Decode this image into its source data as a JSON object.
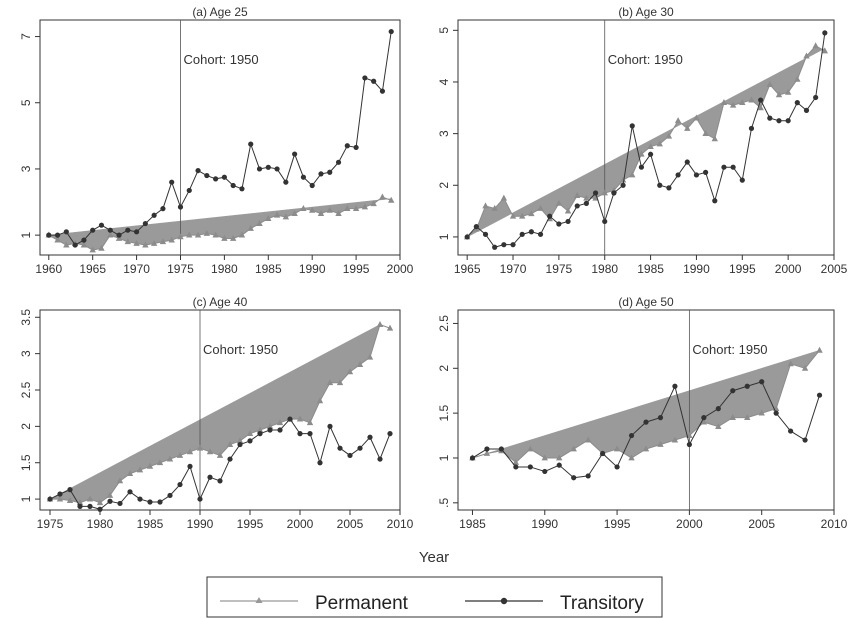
{
  "figure": {
    "xlabel": "Year"
  },
  "legend": {
    "items": [
      {
        "label": "Permanent",
        "color": "#999999",
        "marker": "triangle"
      },
      {
        "label": "Transitory",
        "color": "#333333",
        "marker": "circle"
      }
    ]
  },
  "chart_data": [
    {
      "type": "line",
      "title": "(a) Age 25",
      "xlim": [
        1959,
        2000
      ],
      "ylim": [
        0.4,
        7.5
      ],
      "xticks": [
        1960,
        1965,
        1970,
        1975,
        1980,
        1985,
        1990,
        1995,
        2000
      ],
      "yticks": [
        1,
        3,
        5,
        7
      ],
      "ytick_labels": [
        "1",
        "3",
        "5",
        "7"
      ],
      "vline": 1975,
      "annotation": "Cohort: 1950",
      "trend": {
        "x": [
          1960,
          1999
        ],
        "y": [
          1.0,
          2.1
        ]
      },
      "series": [
        {
          "name": "Permanent",
          "x": [
            1960,
            1961,
            1962,
            1963,
            1964,
            1965,
            1966,
            1967,
            1968,
            1969,
            1970,
            1971,
            1972,
            1973,
            1974,
            1975,
            1976,
            1977,
            1978,
            1979,
            1980,
            1981,
            1982,
            1983,
            1984,
            1985,
            1986,
            1987,
            1988,
            1989,
            1990,
            1991,
            1992,
            1993,
            1994,
            1995,
            1996,
            1997,
            1998,
            1999
          ],
          "y": [
            1.0,
            0.85,
            0.7,
            0.75,
            0.7,
            0.55,
            0.6,
            1.0,
            0.9,
            0.8,
            0.75,
            0.7,
            0.75,
            0.8,
            0.85,
            0.95,
            1.0,
            1.0,
            1.05,
            1.0,
            0.9,
            0.9,
            1.0,
            1.2,
            1.35,
            1.5,
            1.6,
            1.55,
            1.65,
            1.8,
            1.75,
            1.65,
            1.75,
            1.65,
            1.8,
            1.8,
            1.85,
            1.95,
            2.15,
            2.05
          ]
        },
        {
          "name": "Transitory",
          "x": [
            1960,
            1961,
            1962,
            1963,
            1964,
            1965,
            1966,
            1967,
            1968,
            1969,
            1970,
            1971,
            1972,
            1973,
            1974,
            1975,
            1976,
            1977,
            1978,
            1979,
            1980,
            1981,
            1982,
            1983,
            1984,
            1985,
            1986,
            1987,
            1988,
            1989,
            1990,
            1991,
            1992,
            1993,
            1994,
            1995,
            1996,
            1997,
            1998,
            1999
          ],
          "y": [
            1.0,
            1.0,
            1.1,
            0.7,
            0.85,
            1.15,
            1.3,
            1.15,
            1.0,
            1.15,
            1.1,
            1.35,
            1.6,
            1.8,
            2.6,
            1.85,
            2.35,
            2.95,
            2.8,
            2.7,
            2.75,
            2.5,
            2.4,
            3.75,
            3.0,
            3.05,
            3.0,
            2.6,
            3.45,
            2.75,
            2.5,
            2.85,
            2.9,
            3.2,
            3.7,
            3.65,
            5.75,
            5.65,
            5.35,
            7.15
          ]
        }
      ]
    },
    {
      "type": "line",
      "title": "(b) Age 30",
      "xlim": [
        1964,
        2005
      ],
      "ylim": [
        0.65,
        5.2
      ],
      "xticks": [
        1965,
        1970,
        1975,
        1980,
        1985,
        1990,
        1995,
        2000,
        2005
      ],
      "yticks": [
        1,
        2,
        3,
        4,
        5
      ],
      "ytick_labels": [
        "1",
        "2",
        "3",
        "4",
        "5"
      ],
      "vline": 1980,
      "annotation": "Cohort: 1950",
      "trend": {
        "x": [
          1965,
          2004
        ],
        "y": [
          1.0,
          4.65
        ]
      },
      "series": [
        {
          "name": "Permanent",
          "x": [
            1965,
            1966,
            1967,
            1968,
            1969,
            1970,
            1971,
            1972,
            1973,
            1974,
            1975,
            1976,
            1977,
            1978,
            1979,
            1980,
            1981,
            1982,
            1983,
            1984,
            1985,
            1986,
            1987,
            1988,
            1989,
            1990,
            1991,
            1992,
            1993,
            1994,
            1995,
            1996,
            1997,
            1998,
            1999,
            2000,
            2001,
            2002,
            2003,
            2004
          ],
          "y": [
            1.0,
            1.15,
            1.6,
            1.55,
            1.75,
            1.4,
            1.4,
            1.45,
            1.55,
            1.35,
            1.65,
            1.5,
            1.8,
            1.75,
            1.75,
            1.85,
            1.9,
            2.1,
            2.2,
            2.6,
            2.75,
            2.8,
            2.95,
            3.25,
            3.1,
            3.3,
            3.0,
            2.9,
            3.6,
            3.55,
            3.6,
            3.65,
            3.5,
            3.95,
            3.75,
            3.8,
            4.05,
            4.5,
            4.7,
            4.6
          ]
        },
        {
          "name": "Transitory",
          "x": [
            1965,
            1966,
            1967,
            1968,
            1969,
            1970,
            1971,
            1972,
            1973,
            1974,
            1975,
            1976,
            1977,
            1978,
            1979,
            1980,
            1981,
            1982,
            1983,
            1984,
            1985,
            1986,
            1987,
            1988,
            1989,
            1990,
            1991,
            1992,
            1993,
            1994,
            1995,
            1996,
            1997,
            1998,
            1999,
            2000,
            2001,
            2002,
            2003,
            2004
          ],
          "y": [
            1.0,
            1.2,
            1.05,
            0.8,
            0.85,
            0.85,
            1.05,
            1.1,
            1.05,
            1.4,
            1.25,
            1.3,
            1.6,
            1.65,
            1.85,
            1.3,
            1.85,
            2.0,
            3.15,
            2.35,
            2.6,
            2.0,
            1.95,
            2.2,
            2.45,
            2.2,
            2.25,
            1.7,
            2.35,
            2.35,
            2.1,
            3.1,
            3.65,
            3.3,
            3.25,
            3.25,
            3.6,
            3.45,
            3.7,
            4.95
          ]
        }
      ]
    },
    {
      "type": "line",
      "title": "(c) Age 40",
      "xlim": [
        1974,
        2010
      ],
      "ylim": [
        0.85,
        3.6
      ],
      "xticks": [
        1975,
        1980,
        1985,
        1990,
        1995,
        2000,
        2005,
        2010
      ],
      "yticks": [
        1,
        1.5,
        2,
        2.5,
        3,
        3.5
      ],
      "ytick_labels": [
        "1",
        "1.5",
        "2",
        "2.5",
        "3",
        "3.5"
      ],
      "vline": 1990,
      "annotation": "Cohort: 1950",
      "trend": {
        "x": [
          1975,
          2008
        ],
        "y": [
          1.0,
          3.4
        ]
      },
      "series": [
        {
          "name": "Permanent",
          "x": [
            1975,
            1976,
            1977,
            1978,
            1979,
            1980,
            1981,
            1982,
            1983,
            1984,
            1985,
            1986,
            1987,
            1988,
            1989,
            1990,
            1991,
            1992,
            1993,
            1994,
            1995,
            1996,
            1997,
            1998,
            1999,
            2000,
            2001,
            2002,
            2003,
            2004,
            2005,
            2006,
            2007,
            2008,
            2009
          ],
          "y": [
            1.0,
            1.0,
            0.98,
            0.95,
            1.0,
            0.95,
            1.05,
            1.25,
            1.35,
            1.4,
            1.45,
            1.5,
            1.55,
            1.6,
            1.65,
            1.7,
            1.65,
            1.6,
            1.75,
            1.8,
            1.9,
            1.95,
            2.0,
            2.05,
            2.1,
            2.1,
            2.05,
            2.35,
            2.6,
            2.6,
            2.75,
            2.85,
            2.95,
            3.4,
            3.35
          ]
        },
        {
          "name": "Transitory",
          "x": [
            1975,
            1976,
            1977,
            1978,
            1979,
            1980,
            1981,
            1982,
            1983,
            1984,
            1985,
            1986,
            1987,
            1988,
            1989,
            1990,
            1991,
            1992,
            1993,
            1994,
            1995,
            1996,
            1997,
            1998,
            1999,
            2000,
            2001,
            2002,
            2003,
            2004,
            2005,
            2006,
            2007,
            2008,
            2009
          ],
          "y": [
            1.0,
            1.07,
            1.13,
            0.9,
            0.9,
            0.86,
            0.97,
            0.94,
            1.1,
            1.0,
            0.96,
            0.96,
            1.05,
            1.2,
            1.45,
            1.0,
            1.3,
            1.25,
            1.55,
            1.75,
            1.8,
            1.9,
            1.95,
            1.95,
            2.1,
            1.9,
            1.9,
            1.5,
            2.0,
            1.7,
            1.6,
            1.7,
            1.85,
            1.55,
            1.9
          ]
        }
      ]
    },
    {
      "type": "line",
      "title": "(d) Age 50",
      "xlim": [
        1984,
        2010
      ],
      "ylim": [
        0.42,
        2.65
      ],
      "xticks": [
        1985,
        1990,
        1995,
        2000,
        2005,
        2010
      ],
      "yticks": [
        0.5,
        1,
        1.5,
        2,
        2.5
      ],
      "ytick_labels": [
        ".5",
        "1",
        "1.5",
        "2",
        "2.5"
      ],
      "vline": 2000,
      "annotation": "Cohort: 1950",
      "trend": {
        "x": [
          1985,
          2009
        ],
        "y": [
          1.0,
          2.2
        ]
      },
      "series": [
        {
          "name": "Permanent",
          "x": [
            1985,
            1986,
            1987,
            1988,
            1989,
            1990,
            1991,
            1992,
            1993,
            1994,
            1995,
            1996,
            1997,
            1998,
            1999,
            2000,
            2001,
            2002,
            2003,
            2004,
            2005,
            2006,
            2007,
            2008,
            2009
          ],
          "y": [
            1.0,
            1.05,
            1.08,
            0.95,
            1.1,
            1.0,
            1.0,
            1.1,
            1.2,
            1.05,
            1.1,
            1.0,
            1.1,
            1.15,
            1.2,
            1.25,
            1.4,
            1.35,
            1.45,
            1.45,
            1.5,
            1.55,
            2.05,
            2.0,
            2.2
          ]
        },
        {
          "name": "Transitory",
          "x": [
            1985,
            1986,
            1987,
            1988,
            1989,
            1990,
            1991,
            1992,
            1993,
            1994,
            1995,
            1996,
            1997,
            1998,
            1999,
            2000,
            2001,
            2002,
            2003,
            2004,
            2005,
            2006,
            2007,
            2008,
            2009
          ],
          "y": [
            1.0,
            1.1,
            1.1,
            0.9,
            0.9,
            0.85,
            0.92,
            0.78,
            0.8,
            1.05,
            0.9,
            1.25,
            1.4,
            1.45,
            1.8,
            1.15,
            1.45,
            1.55,
            1.75,
            1.8,
            1.85,
            1.5,
            1.3,
            1.2,
            1.7
          ]
        }
      ]
    }
  ]
}
